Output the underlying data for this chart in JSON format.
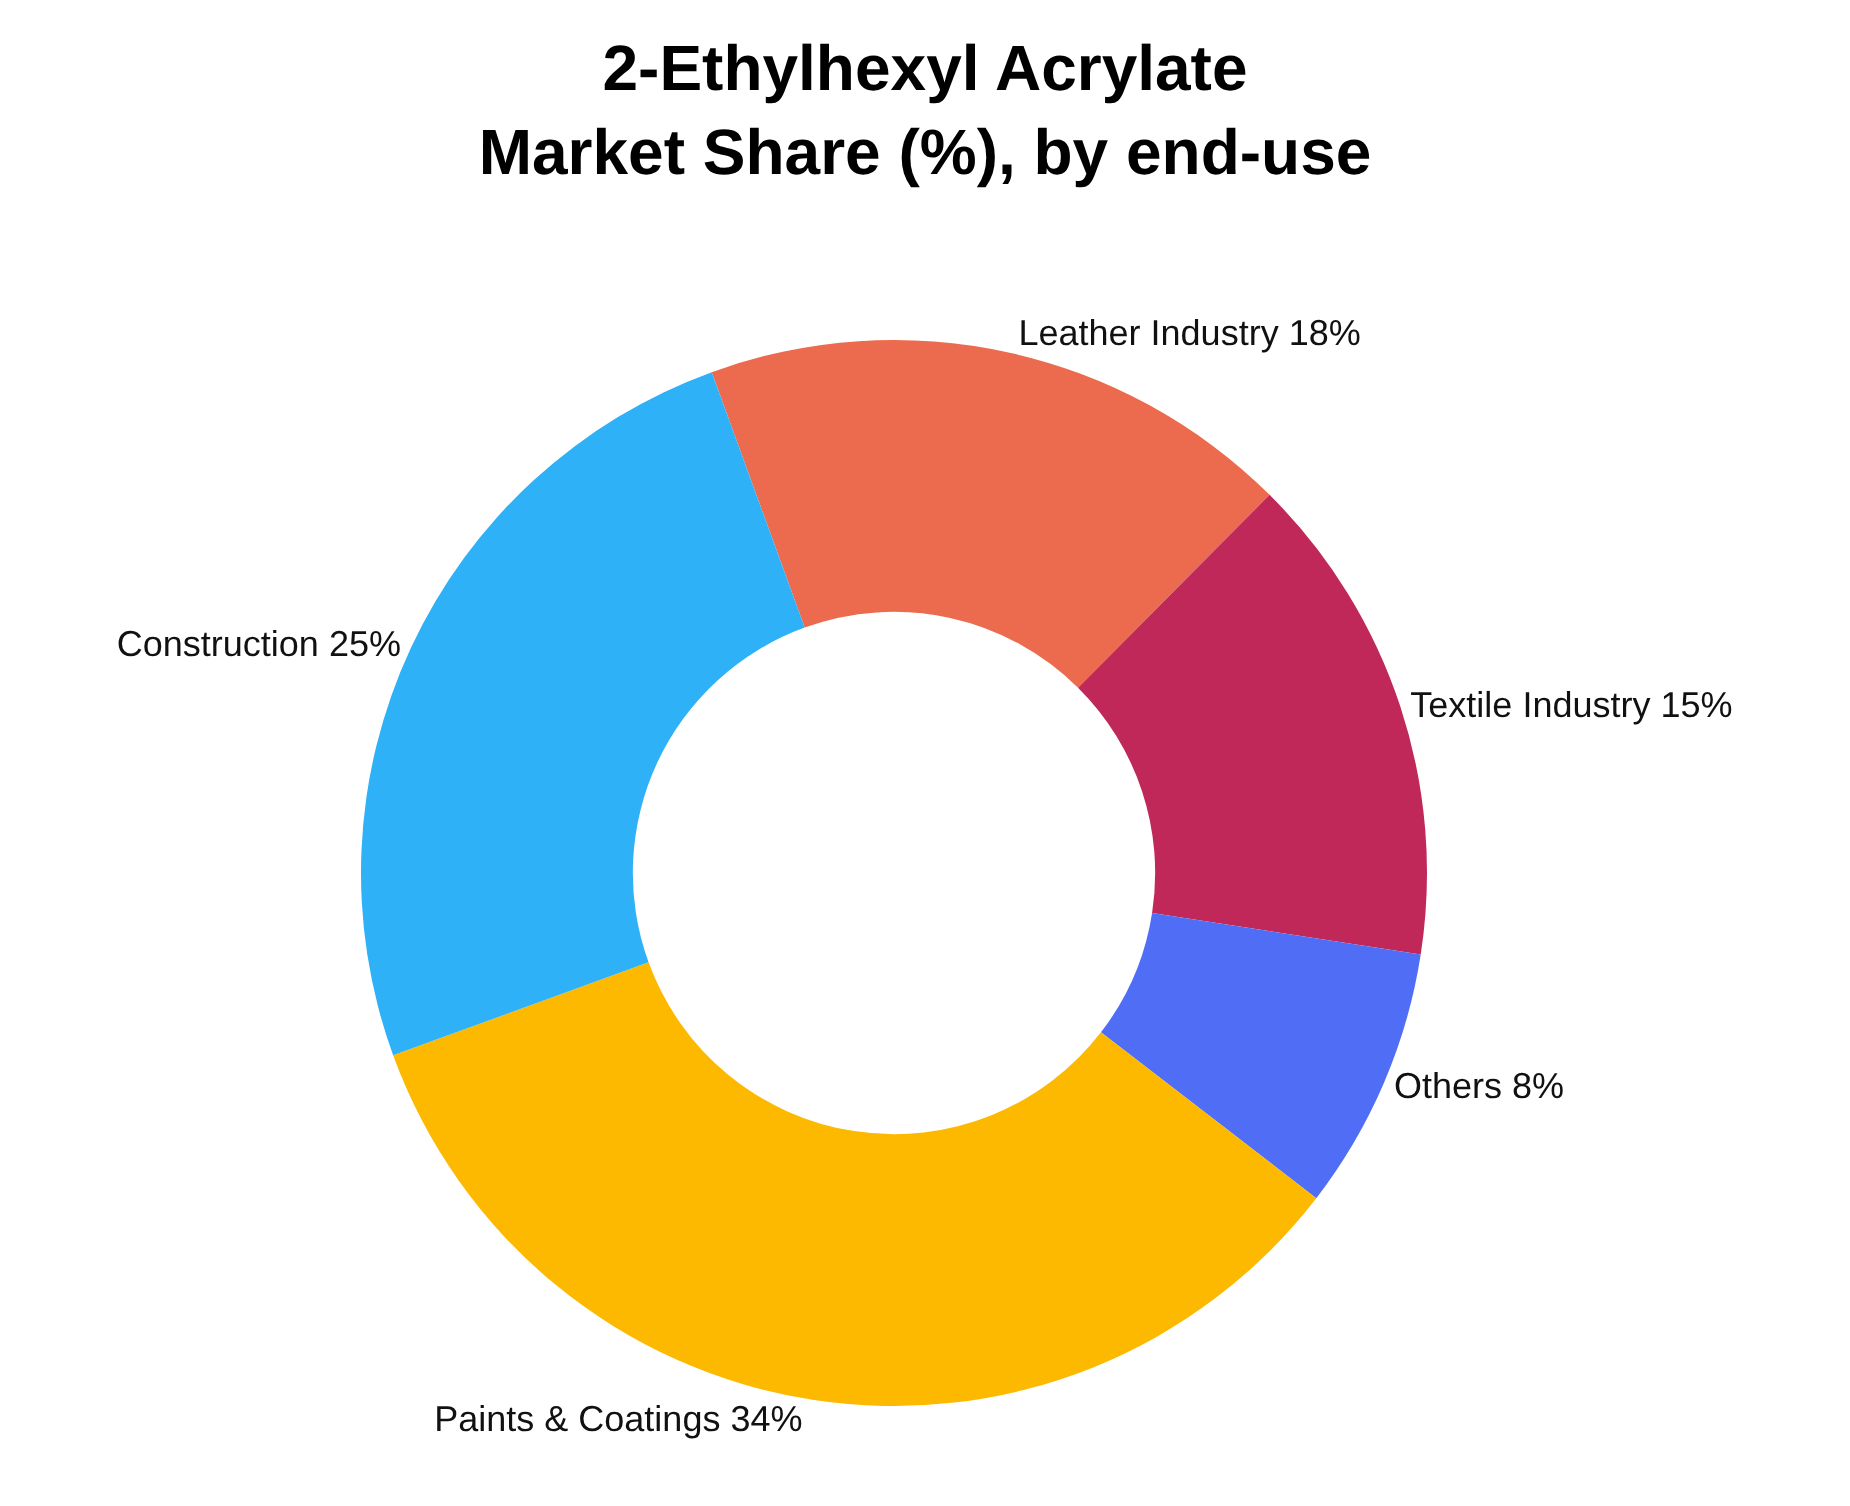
{
  "chart_data": {
    "type": "donut",
    "title": "2-Ethylhexyl Acrylate\nMarket Share (%), by end-use",
    "categories": [
      "Leather Industry",
      "Textile Industry",
      "Others",
      "Paints & Coatings",
      "Construction"
    ],
    "values": [
      18,
      15,
      8,
      34,
      25
    ],
    "value_labels": [
      "18%",
      "15%",
      "8%",
      "34%",
      "25%"
    ],
    "colors": [
      "#ec6b4e",
      "#c0285a",
      "#4f6ef5",
      "#fdb900",
      "#2fb1f7"
    ],
    "legend": false
  }
}
